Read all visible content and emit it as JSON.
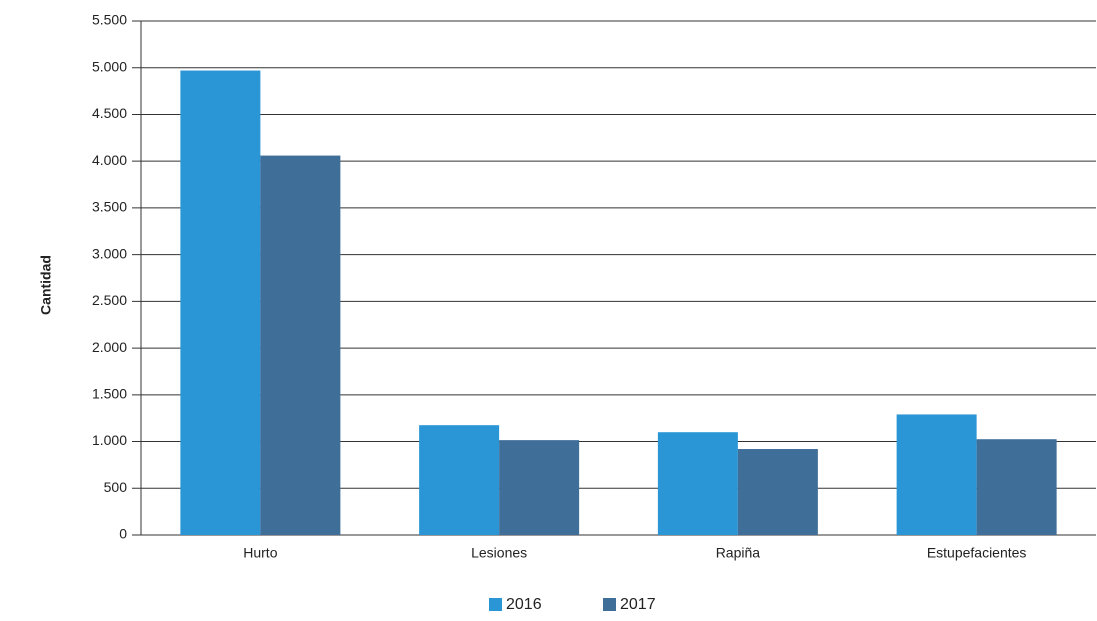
{
  "chart_data": {
    "type": "bar",
    "y_label": "Cantidad",
    "categories": [
      "Hurto",
      "Lesiones",
      "Rapiña",
      "Estupefacientes"
    ],
    "series": [
      {
        "name": "2016",
        "color": "#2b96d6",
        "values": [
          4970,
          1175,
          1100,
          1290
        ]
      },
      {
        "name": "2017",
        "color": "#3f6e98",
        "values": [
          4060,
          1015,
          920,
          1025
        ]
      }
    ],
    "ylim": [
      0,
      5500
    ],
    "yticks": [
      0,
      500,
      {
        "value": 1000,
        "label": "1.000"
      },
      {
        "value": 1500,
        "label": "1.500"
      },
      {
        "value": 2000,
        "label": "2.000"
      },
      {
        "value": 2500,
        "label": "2.500"
      },
      {
        "value": 3000,
        "label": "3.000"
      },
      {
        "value": 3500,
        "label": "3.500"
      },
      {
        "value": 4000,
        "label": "4.000"
      },
      {
        "value": 4500,
        "label": "4.500"
      },
      {
        "value": 5000,
        "label": "5.000"
      },
      {
        "value": 5500,
        "label": "5.500"
      }
    ],
    "grid": true,
    "legend": "bottom"
  }
}
